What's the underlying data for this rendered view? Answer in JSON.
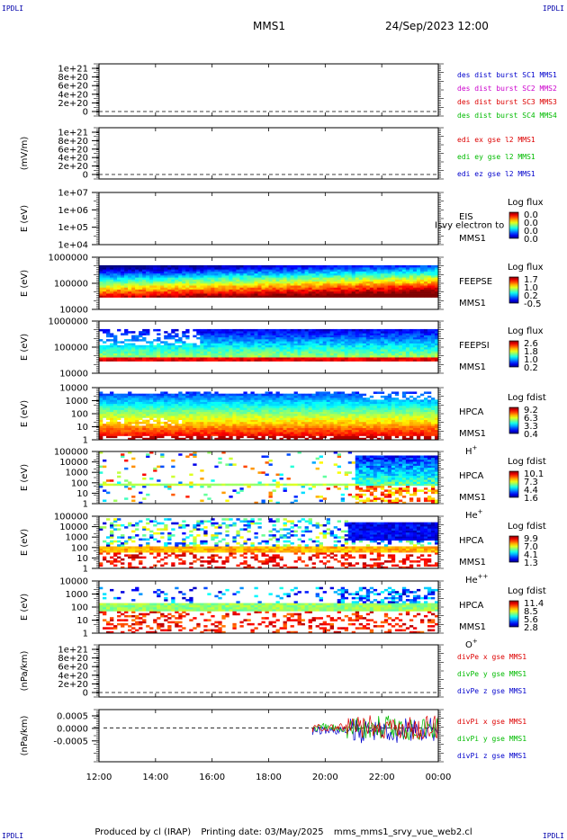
{
  "corners": {
    "tl": "IPDLI",
    "tr": "IPDLI",
    "bl": "IPDLI",
    "br": "IPDLI"
  },
  "header": {
    "spacecraft": "MMS1",
    "datetime": "24/Sep/2023 12:00"
  },
  "footer": {
    "produced": "Produced by cl (IRAP)",
    "printed": "Printing date: 03/May/2025",
    "script": "mms_mms1_srvy_vue_web2.cl"
  },
  "colors": {
    "MMS1": "#0000cc",
    "MMS2": "#cc00cc",
    "MMS3": "#dd0000",
    "MMS4": "#00bb00",
    "x": "#dd0000",
    "y": "#00bb00",
    "z": "#0000cc"
  },
  "chart_data": {
    "type": "multi-panel",
    "x_ticks": [
      "12:00",
      "14:00",
      "16:00",
      "18:00",
      "20:00",
      "22:00",
      "00:00"
    ],
    "panels": [
      {
        "kind": "line",
        "ylabel": "",
        "yticks": [
          "1e+21",
          "8e+20",
          "6e+20",
          "4e+20",
          "2e+20",
          "0"
        ],
        "legend": [
          {
            "text": "des dist burst SC1 MMS1",
            "color": "MMS1"
          },
          {
            "text": "des dist burst SC2 MMS2",
            "color": "MMS2"
          },
          {
            "text": "des dist burst SC3 MMS3",
            "color": "MMS3"
          },
          {
            "text": "des dist burst SC4 MMS4",
            "color": "MMS4"
          }
        ]
      },
      {
        "kind": "line",
        "ylabel": "(mV/m)",
        "yticks": [
          "1e+21",
          "8e+20",
          "6e+20",
          "4e+20",
          "2e+20",
          "0"
        ],
        "legend": [
          {
            "text": "edi ex gse l2 MMS1",
            "color": "x"
          },
          {
            "text": "edi ey gse l2 MMS1",
            "color": "y"
          },
          {
            "text": "edi ez gse l2 MMS1",
            "color": "z"
          }
        ]
      },
      {
        "kind": "spec",
        "empty": true,
        "ylabel": "E (eV)",
        "yticks": [
          "1e+07",
          "1e+06",
          "1e+05",
          "1e+04"
        ],
        "inst": [
          "EIS",
          "MMS1"
        ],
        "overlay": "Isvy electron to",
        "cbar_title": "Log flux",
        "cbar_ticks": [
          "0.0",
          "0.0",
          "0.0",
          "0.0"
        ],
        "seed": 3
      },
      {
        "kind": "spec",
        "pattern": "feepse",
        "ylabel": "E (eV)",
        "yticks": [
          "1000000",
          "100000",
          "10000"
        ],
        "inst": [
          "FEEPSE",
          "MMS1"
        ],
        "cbar_title": "Log flux",
        "cbar_ticks": [
          "1.7",
          "1.0",
          "0.2",
          "-0.5"
        ],
        "seed": 11
      },
      {
        "kind": "spec",
        "pattern": "feepsi",
        "ylabel": "E (eV)",
        "yticks": [
          "1000000",
          "100000",
          "10000"
        ],
        "inst": [
          "FEEPSI",
          "MMS1"
        ],
        "cbar_title": "Log flux",
        "cbar_ticks": [
          "2.6",
          "1.8",
          "1.0",
          "0.2"
        ],
        "seed": 17
      },
      {
        "kind": "spec",
        "pattern": "hplus",
        "ylabel": "E (eV)",
        "yticks": [
          "10000",
          "1000",
          "100",
          "10",
          "1"
        ],
        "inst": [
          "HPCA",
          "MMS1"
        ],
        "species": "H",
        "sup": "+",
        "cbar_title": "Log fdist",
        "cbar_ticks": [
          "9.2",
          "6.3",
          "3.3",
          "0.4"
        ],
        "seed": 23
      },
      {
        "kind": "spec",
        "pattern": "heplus",
        "ylabel": "E (eV)",
        "yticks": [
          "100000",
          "10000",
          "1000",
          "100",
          "10",
          "1"
        ],
        "inst": [
          "HPCA",
          "MMS1"
        ],
        "species": "He",
        "sup": "+",
        "cbar_title": "Log fdist",
        "cbar_ticks": [
          "10.1",
          "7.3",
          "4.4",
          "1.6"
        ],
        "seed": 29
      },
      {
        "kind": "spec",
        "pattern": "heplusplus",
        "ylabel": "E (eV)",
        "yticks": [
          "100000",
          "10000",
          "1000",
          "100",
          "10",
          "1"
        ],
        "inst": [
          "HPCA",
          "MMS1"
        ],
        "species": "He",
        "sup": "++",
        "cbar_title": "Log fdist",
        "cbar_ticks": [
          "9.9",
          "7.0",
          "4.1",
          "1.3"
        ],
        "seed": 31
      },
      {
        "kind": "spec",
        "pattern": "oplus",
        "ylabel": "E (eV)",
        "yticks": [
          "10000",
          "1000",
          "100",
          "10",
          "1"
        ],
        "inst": [
          "HPCA",
          "MMS1"
        ],
        "species": "O",
        "sup": "+",
        "cbar_title": "Log fdist",
        "cbar_ticks": [
          "11.4",
          "8.5",
          "5.6",
          "2.8"
        ],
        "seed": 37
      },
      {
        "kind": "line",
        "ylabel": "(nPa/km)",
        "yticks": [
          "1e+21",
          "8e+20",
          "6e+20",
          "4e+20",
          "2e+20",
          "0"
        ],
        "legend": [
          {
            "text": "divPe x gse MMS1",
            "color": "x"
          },
          {
            "text": "divPe y gse MMS1",
            "color": "y"
          },
          {
            "text": "divPe z gse MMS1",
            "color": "z"
          }
        ]
      },
      {
        "kind": "noise",
        "ylabel": "(nPa/km)",
        "yticks": [
          "0.0005",
          "0.0000",
          "-0.0005"
        ],
        "legend": [
          {
            "text": "divPi x gse MMS1",
            "color": "x"
          },
          {
            "text": "divPi y gse MMS1",
            "color": "y"
          },
          {
            "text": "divPi z gse MMS1",
            "color": "z"
          }
        ],
        "seed": 41
      }
    ]
  }
}
